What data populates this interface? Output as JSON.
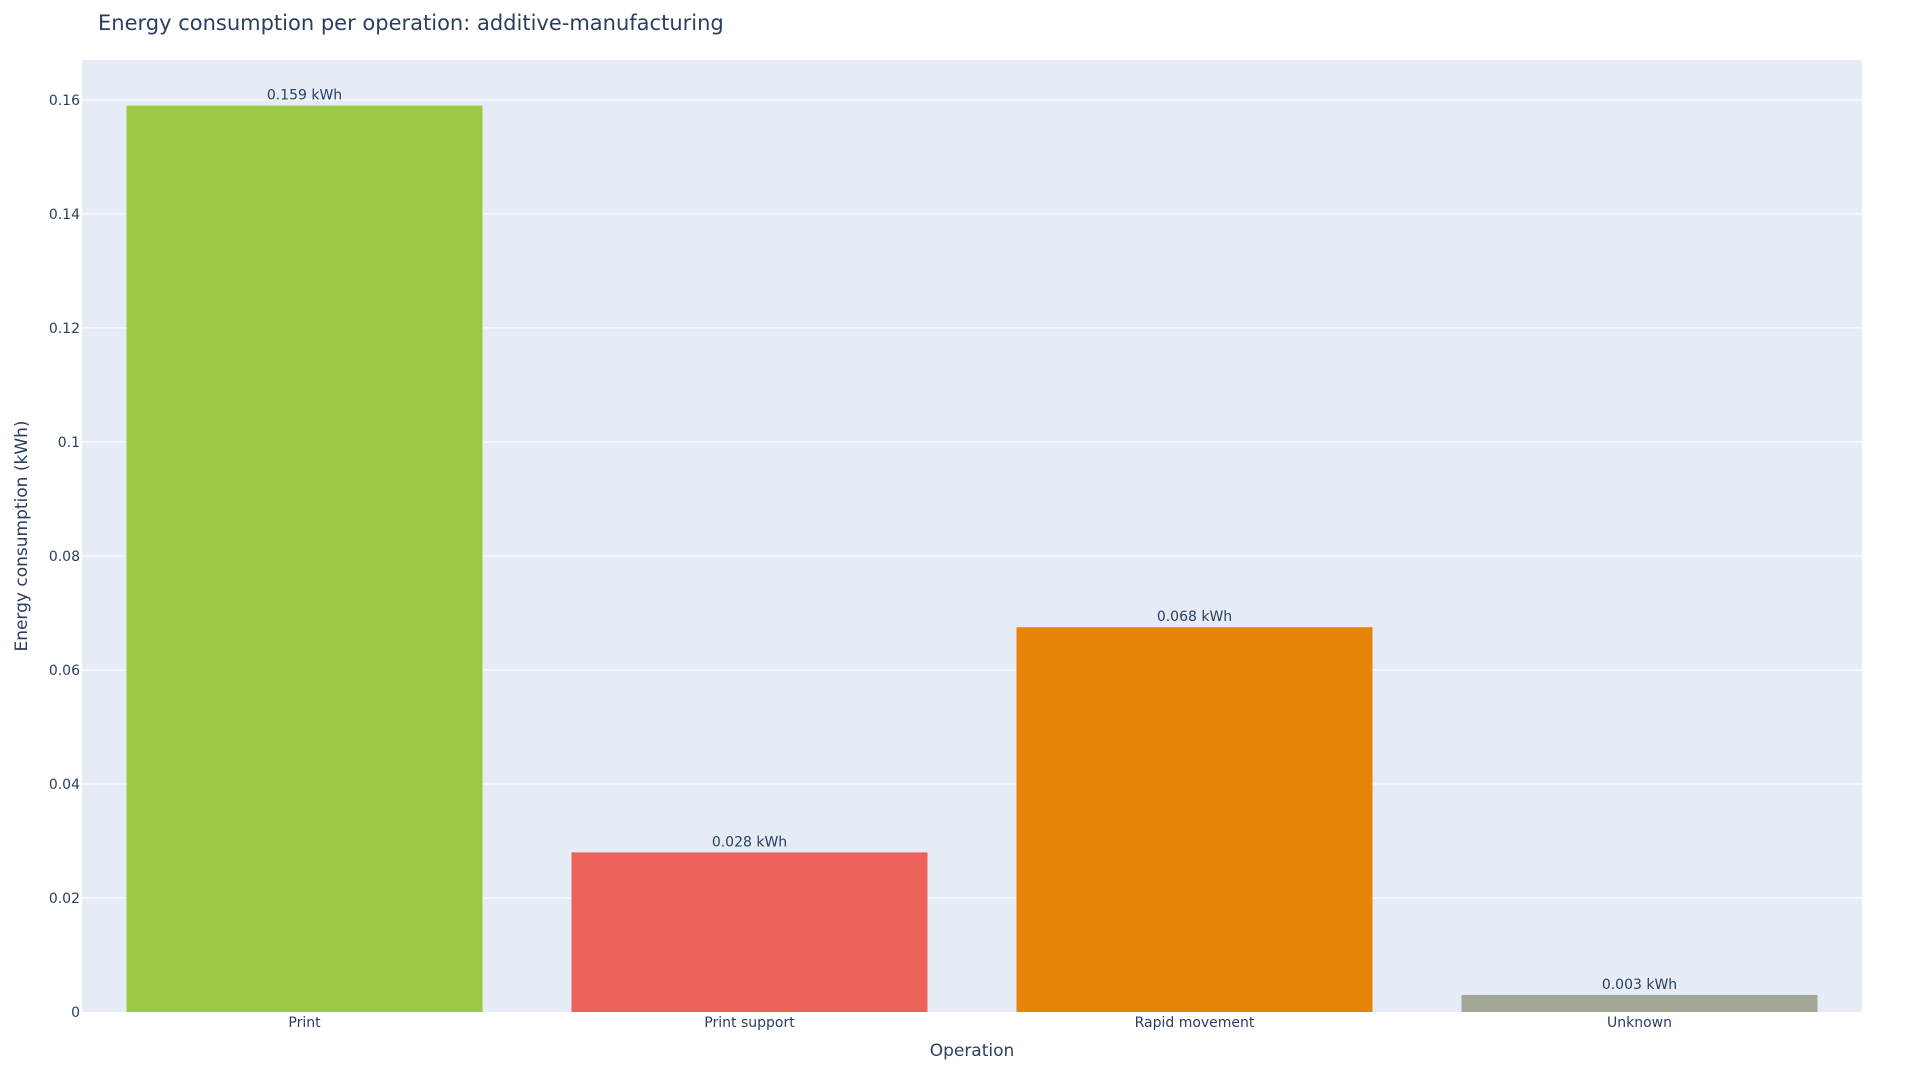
{
  "chart_data": {
    "type": "bar",
    "title": "Energy consumption per operation: additive-manufacturing",
    "xlabel": "Operation",
    "ylabel": "Energy consumption (kWh)",
    "categories": [
      "Print",
      "Print support",
      "Rapid movement",
      "Unknown"
    ],
    "values": [
      0.159,
      0.028,
      0.0675,
      0.003
    ],
    "data_labels": [
      "0.159 kWh",
      "0.028 kWh",
      "0.068 kWh",
      "0.003 kWh"
    ],
    "colors": [
      "#9bc946",
      "#ec625a",
      "#e68407",
      "#a3a795"
    ],
    "ylim": [
      0,
      0.167
    ],
    "yticks": [
      0,
      0.02,
      0.04,
      0.06,
      0.08,
      0.1,
      0.12,
      0.14,
      0.16
    ],
    "ytick_labels": [
      "0",
      "0.02",
      "0.04",
      "0.06",
      "0.08",
      "0.1",
      "0.12",
      "0.14",
      "0.16"
    ],
    "grid": true,
    "legend": "none",
    "plot_background": "#e5ecf6",
    "grid_color": "#ffffff",
    "text_color": "#2a3f5f"
  }
}
